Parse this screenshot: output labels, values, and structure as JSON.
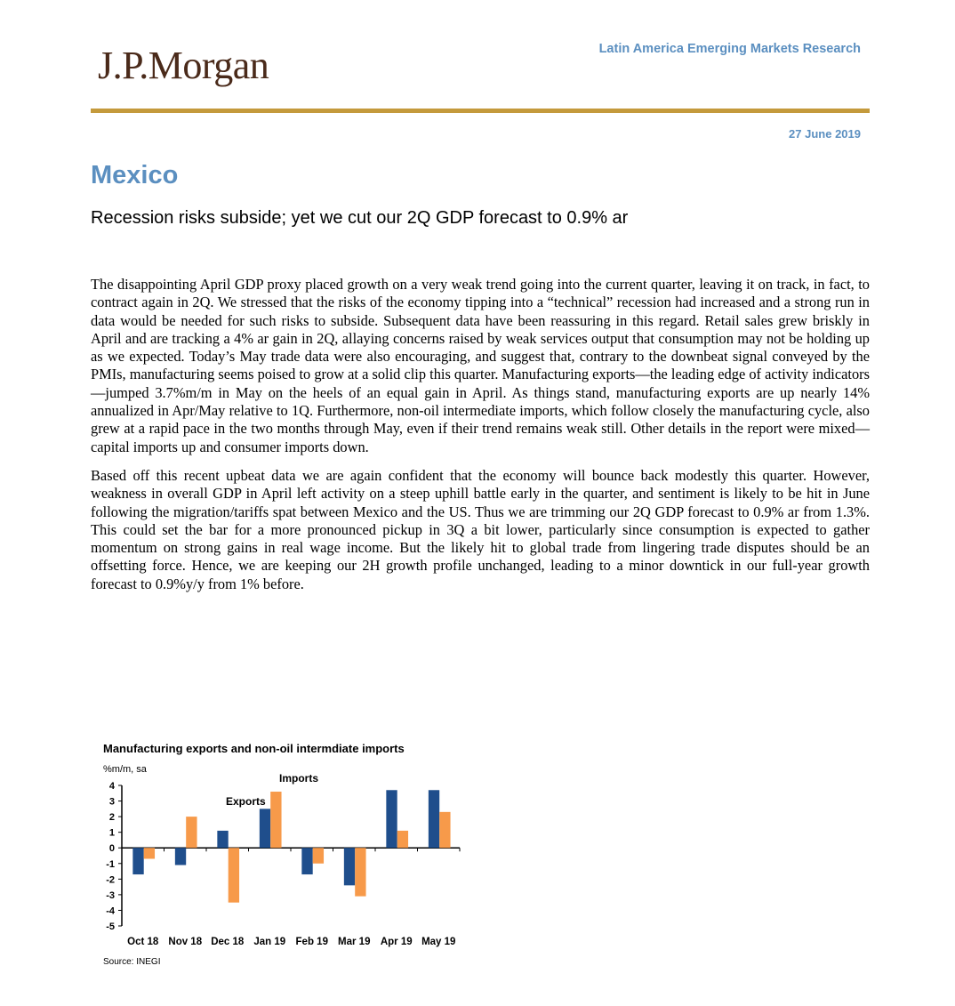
{
  "header": {
    "logo": "J.P.Morgan",
    "section": "Latin America Emerging Markets Research",
    "date": "27 June 2019"
  },
  "title": "Mexico",
  "subtitle": "Recession risks subside; yet we cut our 2Q GDP forecast to 0.9% ar",
  "paragraphs": [
    "The disappointing April GDP proxy placed growth on a very weak trend going into the current quarter, leaving it on track, in fact, to contract again in 2Q. We stressed that the risks of the economy tipping into a “technical” recession had increased and a strong run in data would be needed for such risks to subside. Subsequent data have been reassuring in this regard. Retail sales grew briskly in April and are tracking a 4% ar gain in 2Q, allaying concerns raised by weak services output that consumption may not be holding up as we expected. Today’s May trade data were also encouraging, and suggest that, contrary to the downbeat signal conveyed by the PMIs, manufacturing seems poised to grow at a solid clip this quarter. Manufacturing exports—the leading edge of activity indicators—jumped 3.7%m/m in May on the heels of an equal gain in April. As things stand, manufacturing exports are up nearly 14% annualized in Apr/May relative to 1Q. Furthermore, non-oil intermediate imports, which follow closely the manufacturing cycle, also grew at a rapid pace in the two months through May, even if their trend remains weak still. Other details in the report were mixed—capital imports up and consumer imports down.",
    "Based off this recent upbeat data we are again confident that the economy will bounce back modestly this quarter. However, weakness in overall GDP in April left activity on a steep uphill battle early in the quarter, and sentiment is likely to be hit in June following the migration/tariffs spat between Mexico and the US. Thus we are trimming our 2Q GDP forecast to 0.9% ar from 1.3%. This could set the bar for a more pronounced pickup in 3Q a bit lower, particularly since consumption is expected to gather momentum on strong gains in real wage income. But the likely hit to global trade from lingering trade disputes should be an offsetting force. Hence, we are keeping our 2H growth profile unchanged, leading to a minor downtick in our full-year growth forecast to 0.9%y/y from 1% before."
  ],
  "chart_data": {
    "type": "bar",
    "title": "Manufacturing exports and non-oil intermdiate imports",
    "ylabel": "%m/m, sa",
    "source": "Source: INEGI",
    "categories": [
      "Oct 18",
      "Nov 18",
      "Dec 18",
      "Jan 19",
      "Feb 19",
      "Mar 19",
      "Apr 19",
      "May 19"
    ],
    "ylim": [
      -5,
      4
    ],
    "yticks": [
      "4",
      "3",
      "2",
      "1",
      "0",
      "-1",
      "-2",
      "-3",
      "-4",
      "-5"
    ],
    "series": [
      {
        "name": "Exports",
        "color": "#1f4e8c",
        "values": [
          -1.7,
          -1.1,
          1.1,
          2.5,
          -1.7,
          -2.4,
          3.7,
          3.7
        ]
      },
      {
        "name": "Imports",
        "color": "#f79a4a",
        "values": [
          -0.7,
          2.0,
          -3.5,
          3.6,
          -1.0,
          -3.1,
          1.1,
          2.3
        ]
      }
    ],
    "grid": false,
    "legend": "inline labels"
  }
}
